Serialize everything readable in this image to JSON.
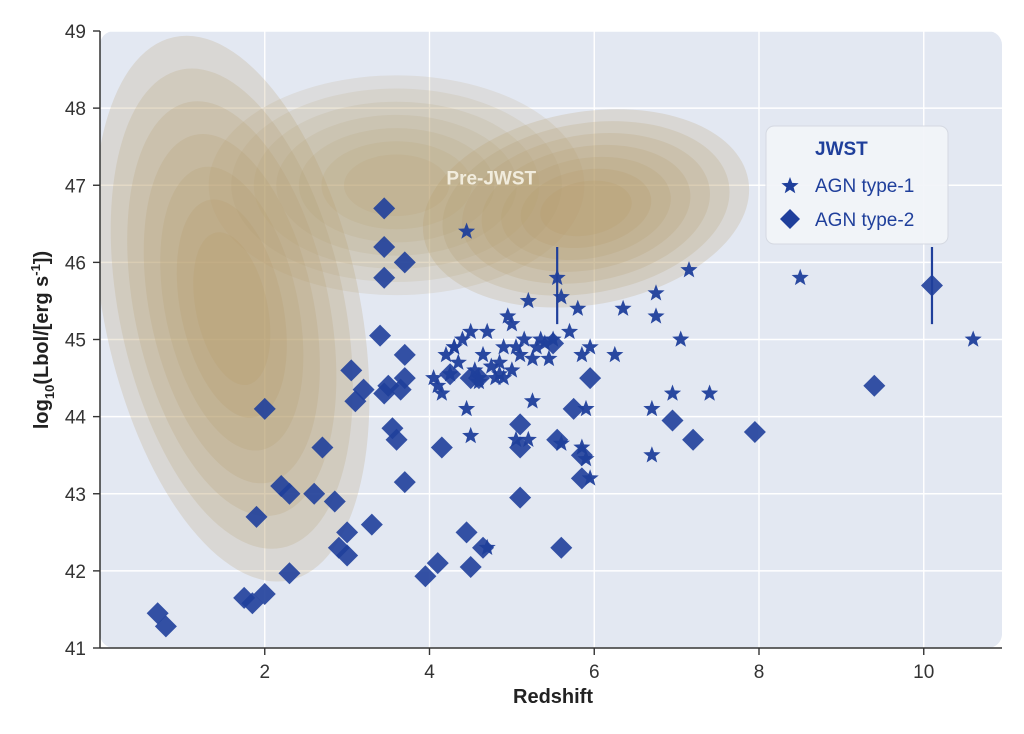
{
  "chart_data": {
    "type": "scatter",
    "title": "",
    "xlabel": "Redshift",
    "ylabel_main": "log",
    "ylabel_sub": "10",
    "ylabel_rest": "(Lbol/[erg s",
    "ylabel_sup": "-1",
    "ylabel_end": "])",
    "xlim": [
      0.0,
      10.95
    ],
    "ylim": [
      41,
      49
    ],
    "xticks": [
      2,
      4,
      6,
      8,
      10
    ],
    "yticks": [
      41,
      42,
      43,
      44,
      45,
      46,
      47,
      48,
      49
    ],
    "grid": true,
    "legend": {
      "title": "JWST",
      "placement": "top-right",
      "entries": [
        "AGN type-1",
        "AGN type-2"
      ]
    },
    "annotations": [
      {
        "text": "Pre-JWST",
        "x": 4.75,
        "y": 47.5
      }
    ],
    "colors": {
      "jwst": "#1f3f9b",
      "contour": "#b49a6a",
      "background": "#e3e8f2"
    },
    "series": [
      {
        "name": "AGN type-1",
        "marker": "star",
        "points": [
          [
            4.45,
            46.4
          ],
          [
            4.2,
            44.8
          ],
          [
            4.3,
            44.9
          ],
          [
            4.35,
            44.7
          ],
          [
            4.4,
            45.0
          ],
          [
            4.5,
            45.1
          ],
          [
            4.55,
            44.6
          ],
          [
            4.6,
            44.5
          ],
          [
            4.65,
            44.8
          ],
          [
            4.7,
            45.1
          ],
          [
            4.75,
            44.65
          ],
          [
            4.8,
            44.5
          ],
          [
            4.85,
            44.7
          ],
          [
            4.9,
            44.9
          ],
          [
            4.95,
            45.3
          ],
          [
            5.0,
            45.2
          ],
          [
            5.05,
            44.9
          ],
          [
            5.1,
            44.8
          ],
          [
            5.15,
            45.0
          ],
          [
            5.2,
            45.5
          ],
          [
            5.25,
            44.75
          ],
          [
            5.3,
            44.9
          ],
          [
            5.35,
            45.0
          ],
          [
            5.4,
            44.95
          ],
          [
            5.45,
            44.75
          ],
          [
            5.5,
            45.0
          ],
          [
            5.55,
            45.8
          ],
          [
            5.6,
            45.55
          ],
          [
            5.7,
            45.1
          ],
          [
            5.8,
            45.4
          ],
          [
            5.85,
            44.8
          ],
          [
            5.95,
            44.9
          ],
          [
            6.25,
            44.8
          ],
          [
            6.35,
            45.4
          ],
          [
            6.75,
            45.6
          ],
          [
            6.75,
            45.3
          ],
          [
            7.05,
            45.0
          ],
          [
            7.15,
            45.9
          ],
          [
            6.95,
            44.3
          ],
          [
            7.4,
            44.3
          ],
          [
            6.7,
            44.1
          ],
          [
            6.7,
            43.5
          ],
          [
            5.25,
            44.2
          ],
          [
            5.85,
            43.6
          ],
          [
            4.05,
            44.5
          ],
          [
            4.1,
            44.4
          ],
          [
            4.15,
            44.3
          ],
          [
            4.45,
            44.1
          ],
          [
            4.5,
            43.75
          ],
          [
            4.3,
            44.9
          ],
          [
            5.0,
            44.6
          ],
          [
            4.9,
            44.5
          ],
          [
            5.05,
            43.7
          ],
          [
            5.2,
            43.7
          ],
          [
            4.7,
            42.3
          ],
          [
            5.6,
            43.65
          ],
          [
            5.9,
            44.1
          ],
          [
            5.95,
            43.2
          ],
          [
            5.9,
            43.45
          ],
          [
            8.5,
            45.8
          ],
          [
            10.6,
            45.0
          ],
          [
            4.25,
            44.55
          ],
          [
            4.6,
            44.45
          ],
          [
            4.85,
            44.55
          ]
        ]
      },
      {
        "name": "AGN type-2",
        "marker": "diamond",
        "points": [
          [
            0.7,
            41.45
          ],
          [
            0.8,
            41.28
          ],
          [
            1.75,
            41.65
          ],
          [
            1.85,
            41.58
          ],
          [
            2.0,
            41.7
          ],
          [
            1.9,
            42.7
          ],
          [
            2.0,
            44.1
          ],
          [
            2.2,
            43.1
          ],
          [
            2.3,
            43.0
          ],
          [
            2.3,
            41.97
          ],
          [
            2.6,
            43.0
          ],
          [
            2.7,
            43.6
          ],
          [
            2.85,
            42.9
          ],
          [
            2.9,
            42.3
          ],
          [
            3.0,
            42.2
          ],
          [
            3.0,
            42.5
          ],
          [
            3.05,
            44.6
          ],
          [
            3.1,
            44.2
          ],
          [
            3.2,
            44.35
          ],
          [
            3.3,
            42.6
          ],
          [
            3.45,
            46.7
          ],
          [
            3.45,
            46.2
          ],
          [
            3.45,
            45.8
          ],
          [
            3.4,
            45.05
          ],
          [
            3.45,
            44.3
          ],
          [
            3.5,
            44.4
          ],
          [
            3.55,
            43.85
          ],
          [
            3.6,
            43.7
          ],
          [
            3.65,
            44.35
          ],
          [
            3.7,
            44.5
          ],
          [
            3.7,
            44.8
          ],
          [
            3.7,
            46.0
          ],
          [
            3.7,
            43.15
          ],
          [
            3.95,
            41.93
          ],
          [
            4.1,
            42.1
          ],
          [
            4.15,
            43.6
          ],
          [
            4.45,
            42.5
          ],
          [
            4.5,
            42.05
          ],
          [
            4.65,
            42.3
          ],
          [
            4.6,
            44.5
          ],
          [
            5.1,
            43.9
          ],
          [
            5.1,
            43.6
          ],
          [
            5.1,
            42.95
          ],
          [
            5.5,
            44.95
          ],
          [
            5.55,
            43.7
          ],
          [
            5.6,
            42.3
          ],
          [
            5.75,
            44.1
          ],
          [
            5.85,
            43.5
          ],
          [
            5.85,
            43.2
          ],
          [
            5.95,
            44.5
          ],
          [
            6.95,
            43.95
          ],
          [
            7.2,
            43.7
          ],
          [
            7.95,
            43.8
          ],
          [
            9.4,
            44.4
          ],
          [
            10.1,
            45.7
          ],
          [
            4.25,
            44.55
          ],
          [
            4.5,
            44.5
          ]
        ]
      }
    ],
    "errorbars": [
      {
        "x": 5.55,
        "ylow": 45.2,
        "yhigh": 46.2
      },
      {
        "x": 10.1,
        "ylow": 45.2,
        "yhigh": 46.2
      }
    ]
  }
}
